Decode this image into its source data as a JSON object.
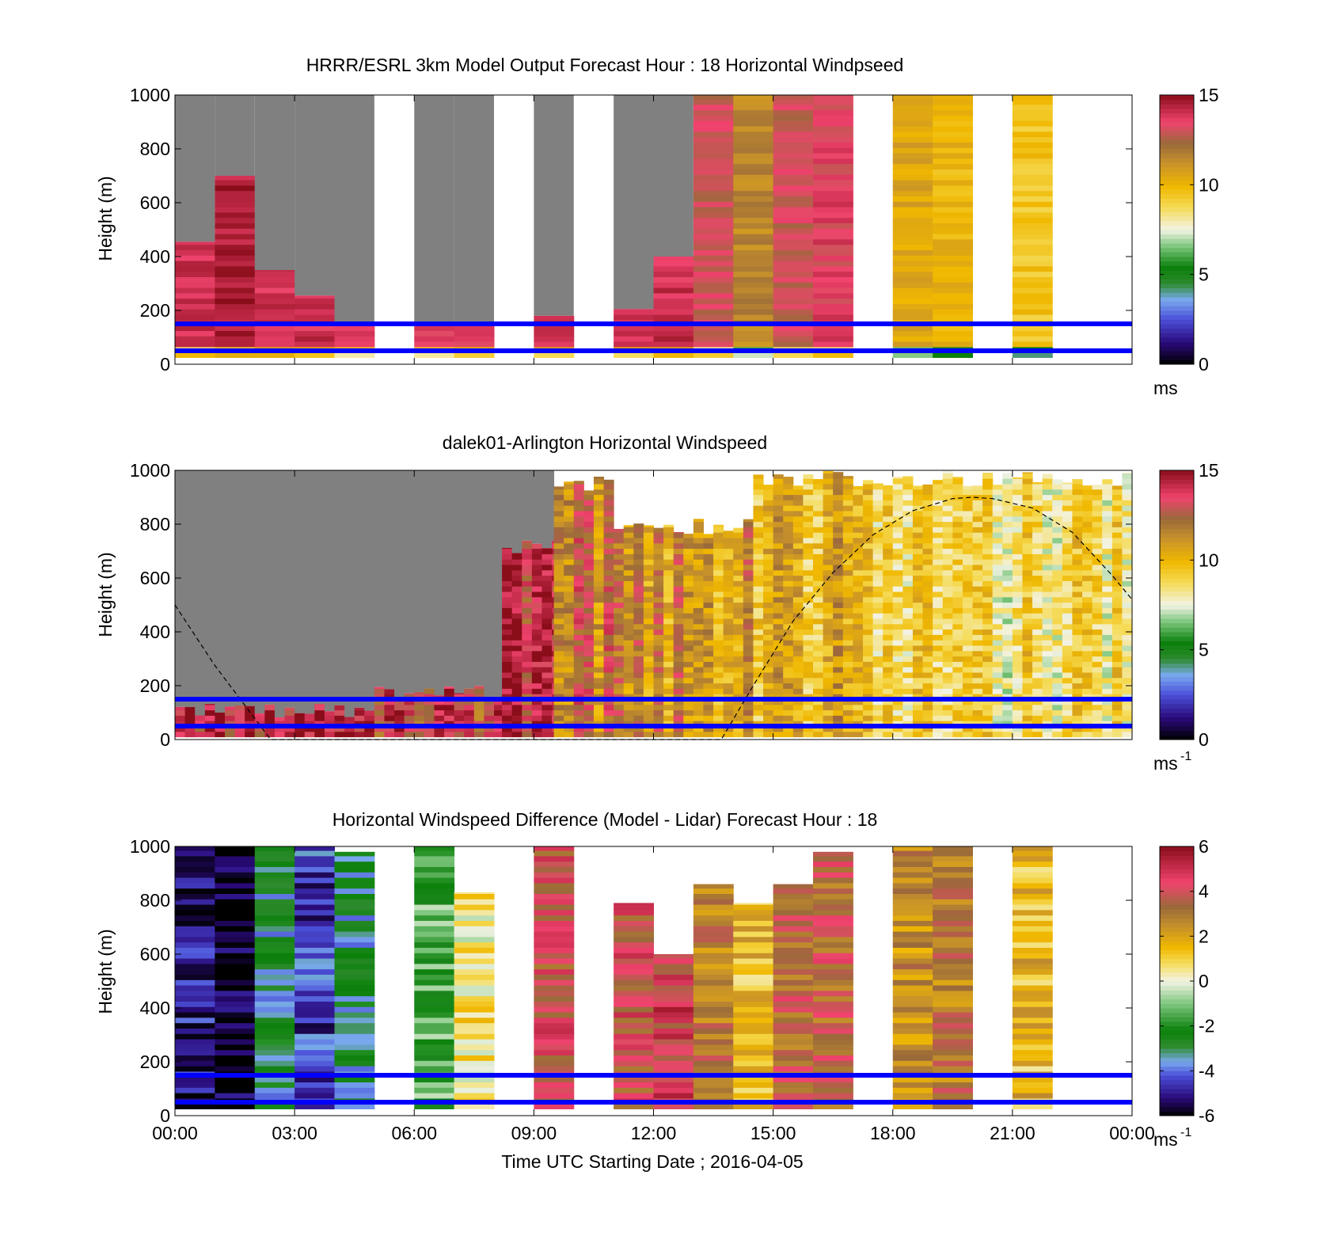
{
  "chart_data": [
    {
      "type": "heatmap",
      "title": "HRRR/ESRL 3km Model Output   Forecast Hour : 18 Horizontal Windpseed",
      "ylabel": "Height (m)",
      "xlabel": "",
      "ylim": [
        0,
        1000
      ],
      "yticks": [
        "0",
        "200",
        "400",
        "600",
        "800",
        "1000"
      ],
      "xticks": [
        "",
        "",
        "",
        "",
        "",
        "",
        "",
        "",
        ""
      ],
      "xlim_hours": [
        0,
        24
      ],
      "colorbar": {
        "ticks": [
          "0",
          "5",
          "10",
          "15"
        ],
        "range": [
          0,
          15
        ],
        "unit": "ms",
        "unit_sup": "",
        "palette": "speed"
      },
      "reference_lines_m": [
        50,
        150
      ],
      "grid": false,
      "columns": [
        {
          "hour": 0,
          "top_m": 455,
          "speed_ms": 14
        },
        {
          "hour": 1,
          "top_m": 700,
          "speed_ms": 14.5
        },
        {
          "hour": 2,
          "top_m": 350,
          "speed_ms": 14
        },
        {
          "hour": 3,
          "top_m": 255,
          "speed_ms": 14
        },
        {
          "hour": 4,
          "top_m": 150,
          "speed_ms": 13.5
        },
        {
          "hour": 6,
          "top_m": 150,
          "speed_ms": 13.5
        },
        {
          "hour": 7,
          "top_m": 150,
          "speed_ms": 13.5
        },
        {
          "hour": 9,
          "top_m": 180,
          "speed_ms": 14
        },
        {
          "hour": 11,
          "top_m": 205,
          "speed_ms": 14
        },
        {
          "hour": 12,
          "top_m": 400,
          "speed_ms": 14
        },
        {
          "hour": 13,
          "top_m": 1000,
          "speed_ms": 13
        },
        {
          "hour": 14,
          "top_m": 1000,
          "speed_ms": 11.5
        },
        {
          "hour": 15,
          "top_m": 1000,
          "speed_ms": 13
        },
        {
          "hour": 16,
          "top_m": 1000,
          "speed_ms": 13.5
        },
        {
          "hour": 18,
          "top_m": 1000,
          "speed_ms": 10.5
        },
        {
          "hour": 19,
          "top_m": 1000,
          "speed_ms": 10
        },
        {
          "hour": 21,
          "top_m": 1000,
          "speed_ms": 9.5
        }
      ]
    },
    {
      "type": "heatmap",
      "title": "dalek01-Arlington  Horizontal Windspeed",
      "ylabel": "Height (m)",
      "xlabel": "",
      "ylim": [
        0,
        1000
      ],
      "yticks": [
        "0",
        "200",
        "400",
        "600",
        "800",
        "1000"
      ],
      "xticks": [
        "",
        "",
        "",
        "",
        "",
        "",
        "",
        "",
        ""
      ],
      "xlim_hours": [
        0,
        24
      ],
      "colorbar": {
        "ticks": [
          "0",
          "5",
          "10",
          "15"
        ],
        "range": [
          0,
          15
        ],
        "unit": "ms",
        "unit_sup": "-1",
        "palette": "speed"
      },
      "reference_lines_m": [
        50,
        150
      ],
      "grid": false,
      "segments": [
        {
          "from_hour": 0,
          "to_hour": 5,
          "top_m": 140,
          "speed_ms": 14,
          "above": "gray"
        },
        {
          "from_hour": 5,
          "to_hour": 8.2,
          "top_m": 200,
          "speed_ms": 13.5,
          "above": "gray"
        },
        {
          "from_hour": 8.2,
          "to_hour": 9.5,
          "top_m": 750,
          "speed_ms": 14,
          "above": "gray"
        },
        {
          "from_hour": 9.5,
          "to_hour": 11,
          "top_m": 980,
          "speed_ms": 12,
          "above": "white"
        },
        {
          "from_hour": 11,
          "to_hour": 14.5,
          "top_m": 820,
          "speed_ms": 11,
          "above": "white"
        },
        {
          "from_hour": 14.5,
          "to_hour": 17.5,
          "top_m": 1000,
          "speed_ms": 10,
          "above": "none"
        },
        {
          "from_hour": 17.5,
          "to_hour": 24,
          "top_m": 1000,
          "speed_ms": 8.5,
          "above": "none"
        }
      ],
      "boundary_curve": [
        [
          0,
          500
        ],
        [
          1,
          275
        ],
        [
          2.4,
          0
        ],
        [
          13.7,
          0
        ],
        [
          14.5,
          200
        ],
        [
          15.5,
          440
        ],
        [
          16.5,
          620
        ],
        [
          17.5,
          760
        ],
        [
          18.5,
          850
        ],
        [
          19.5,
          895
        ],
        [
          20,
          900
        ],
        [
          20.5,
          895
        ],
        [
          21.5,
          860
        ],
        [
          22.5,
          770
        ],
        [
          23.5,
          610
        ],
        [
          24,
          520
        ]
      ]
    },
    {
      "type": "heatmap",
      "title": "Horizontal Windspeed Difference (Model - Lidar) Forecast Hour : 18",
      "ylabel": "Height (m)",
      "xlabel": "Time UTC  Starting Date ; 2016-04-05",
      "ylim": [
        0,
        1000
      ],
      "yticks": [
        "0",
        "200",
        "400",
        "600",
        "800",
        "1000"
      ],
      "xticks": [
        "00:00",
        "03:00",
        "06:00",
        "09:00",
        "12:00",
        "15:00",
        "18:00",
        "21:00",
        "00:00"
      ],
      "xlim_hours": [
        0,
        24
      ],
      "colorbar": {
        "ticks": [
          "-6",
          "-4",
          "-2",
          "0",
          "2",
          "4",
          "6"
        ],
        "range": [
          -6,
          6
        ],
        "unit": "ms",
        "unit_sup": "-1",
        "palette": "diff"
      },
      "reference_lines_m": [
        50,
        150
      ],
      "grid": false,
      "columns": [
        {
          "hour": 0,
          "top_m": 1000,
          "diff_ms": -5
        },
        {
          "hour": 1,
          "top_m": 1000,
          "diff_ms": -6
        },
        {
          "hour": 2,
          "top_m": 1000,
          "diff_ms": -3
        },
        {
          "hour": 3,
          "top_m": 1000,
          "diff_ms": -4.5
        },
        {
          "hour": 4,
          "top_m": 980,
          "diff_ms": -3
        },
        {
          "hour": 6,
          "top_m": 1000,
          "diff_ms": -1.5
        },
        {
          "hour": 7,
          "top_m": 830,
          "diff_ms": 0.5
        },
        {
          "hour": 9,
          "top_m": 1000,
          "diff_ms": 4
        },
        {
          "hour": 11,
          "top_m": 790,
          "diff_ms": 4
        },
        {
          "hour": 12,
          "top_m": 600,
          "diff_ms": 4.5
        },
        {
          "hour": 13,
          "top_m": 860,
          "diff_ms": 3
        },
        {
          "hour": 14,
          "top_m": 790,
          "diff_ms": 1.5
        },
        {
          "hour": 15,
          "top_m": 860,
          "diff_ms": 3.5
        },
        {
          "hour": 16,
          "top_m": 980,
          "diff_ms": 3.5
        },
        {
          "hour": 18,
          "top_m": 1000,
          "diff_ms": 2.5
        },
        {
          "hour": 19,
          "top_m": 1000,
          "diff_ms": 3
        },
        {
          "hour": 21,
          "top_m": 1000,
          "diff_ms": 1.5
        }
      ]
    }
  ]
}
